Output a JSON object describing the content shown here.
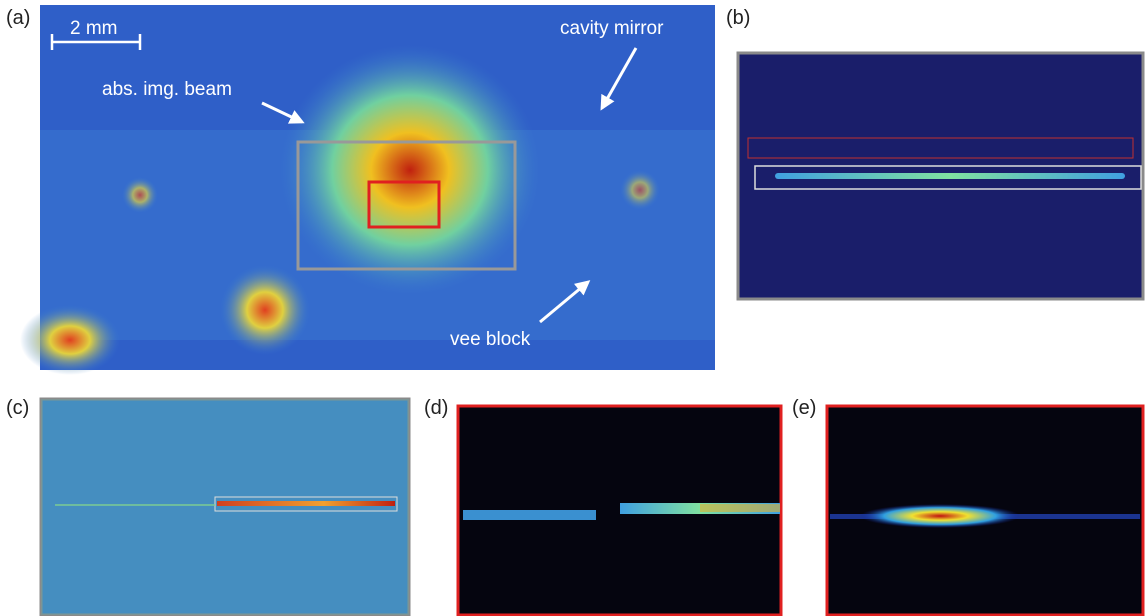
{
  "panels": [
    {
      "label": "(a)"
    },
    {
      "label": "(b)"
    },
    {
      "label": "(c)"
    },
    {
      "label": "(d)"
    },
    {
      "label": "(e)"
    }
  ],
  "annotations": {
    "scale_bar": "2 mm",
    "beam": "abs. img. beam",
    "mirror": "cavity mirror",
    "vee_block": "vee block"
  }
}
